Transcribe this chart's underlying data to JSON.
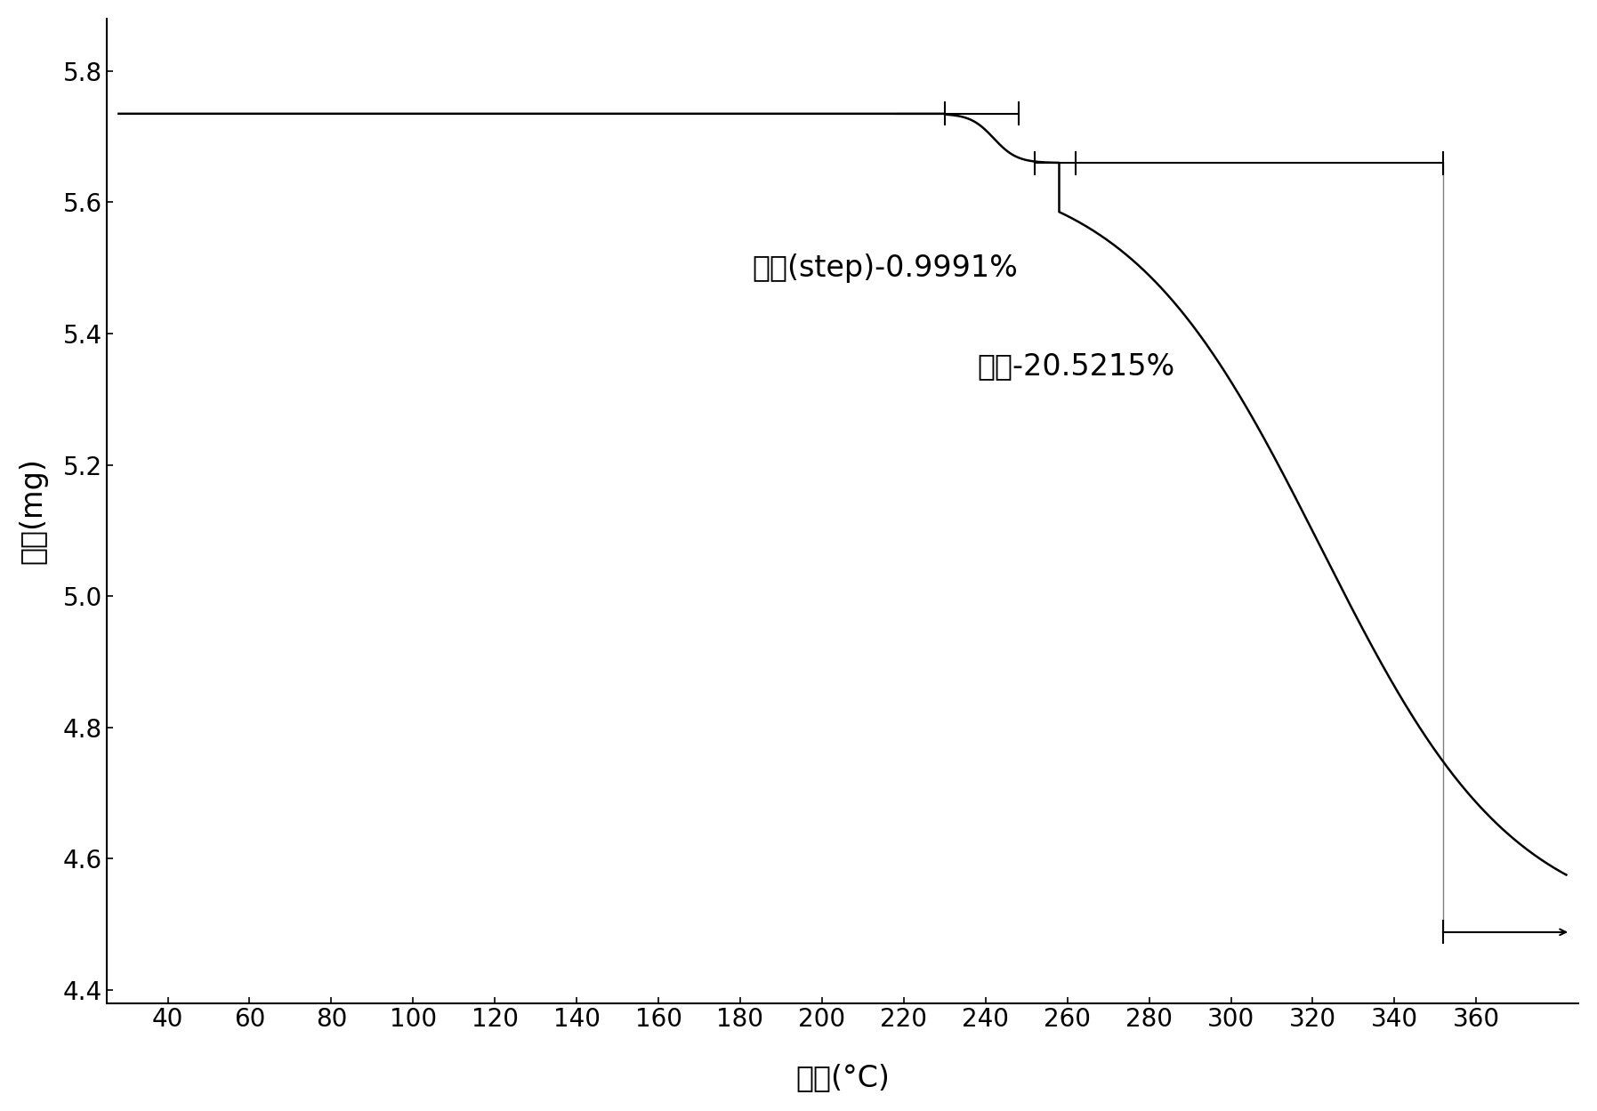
{
  "xlabel": "温度(°C)",
  "ylabel": "重量(mg)",
  "xlim": [
    25,
    385
  ],
  "ylim": [
    4.38,
    5.88
  ],
  "xticks": [
    40,
    60,
    80,
    100,
    120,
    140,
    160,
    180,
    200,
    220,
    240,
    260,
    280,
    300,
    320,
    340,
    360
  ],
  "yticks": [
    4.4,
    4.6,
    4.8,
    5.0,
    5.2,
    5.4,
    5.6,
    5.8
  ],
  "annotation1": "步长(step)-0.9991%",
  "annotation2": "步长-20.5215%",
  "ann1_x": 183,
  "ann1_y": 5.5,
  "ann2_x": 238,
  "ann2_y": 5.35,
  "curve_color": "#000000",
  "font_size_label": 24,
  "font_size_tick": 20,
  "font_size_annotation": 24,
  "background_color": "#ffffff",
  "step1_bracket_top_y": 5.735,
  "step1_bracket_bot_y": 5.72,
  "step1_bracket_x1": 230,
  "step1_bracket_x2": 248,
  "step2_bracket_top_y": 5.662,
  "step2_bracket_bot_y": 4.488,
  "step2_bracket_x1": 255,
  "step2_bracket_x2": 352,
  "bottom_line_x1": 352,
  "bottom_line_x2": 380
}
